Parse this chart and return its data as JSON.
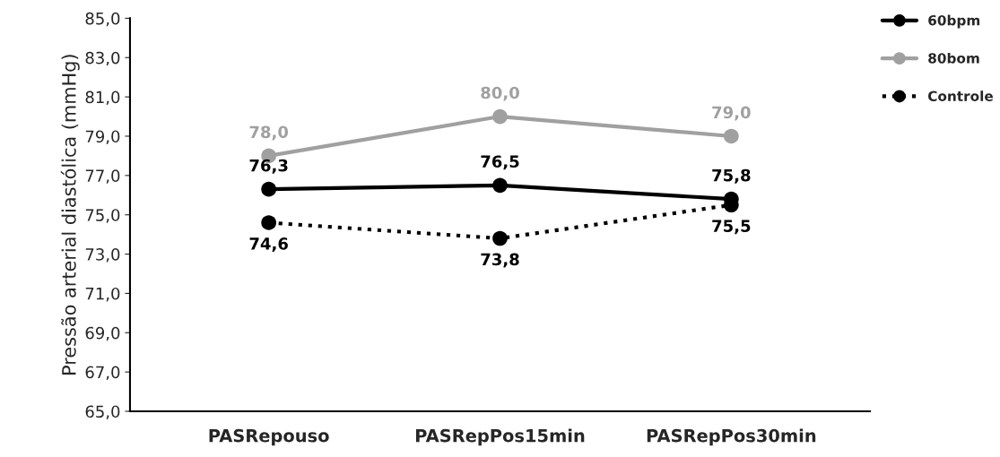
{
  "chart_data": {
    "type": "line",
    "ylabel": "Pressão arterial diastólica (mmHg)",
    "categories": [
      "PASRepouso",
      "PASRepPos15min",
      "PASRepPos30min"
    ],
    "series": [
      {
        "name": "60bpm",
        "color": "#000000",
        "values": [
          76.3,
          76.5,
          75.8
        ],
        "value_labels": [
          "76,3",
          "76,5",
          "75,8"
        ],
        "line_style": "solid"
      },
      {
        "name": "80bom",
        "color": "#a0a0a0",
        "values": [
          78.0,
          80.0,
          79.0
        ],
        "value_labels": [
          "78,0",
          "80,0",
          "79,0"
        ],
        "line_style": "solid"
      },
      {
        "name": "Controle",
        "color": "#000000",
        "values": [
          74.6,
          73.8,
          75.5
        ],
        "value_labels": [
          "74,6",
          "73,8",
          "75,5"
        ],
        "line_style": "dotted"
      }
    ],
    "ylim": [
      65,
      85
    ],
    "yticks": [
      {
        "value": 65,
        "label": "65,0"
      },
      {
        "value": 67,
        "label": "67,0"
      },
      {
        "value": 69,
        "label": "69,0"
      },
      {
        "value": 71,
        "label": "71,0"
      },
      {
        "value": 73,
        "label": "73,0"
      },
      {
        "value": 75,
        "label": "75,0"
      },
      {
        "value": 77,
        "label": "77,0"
      },
      {
        "value": 79,
        "label": "79,0"
      },
      {
        "value": 81,
        "label": "81,0"
      },
      {
        "value": 83,
        "label": "83,0"
      },
      {
        "value": 85,
        "label": "85,0"
      }
    ],
    "marker": "circle",
    "grid": false,
    "legend": "top right"
  }
}
